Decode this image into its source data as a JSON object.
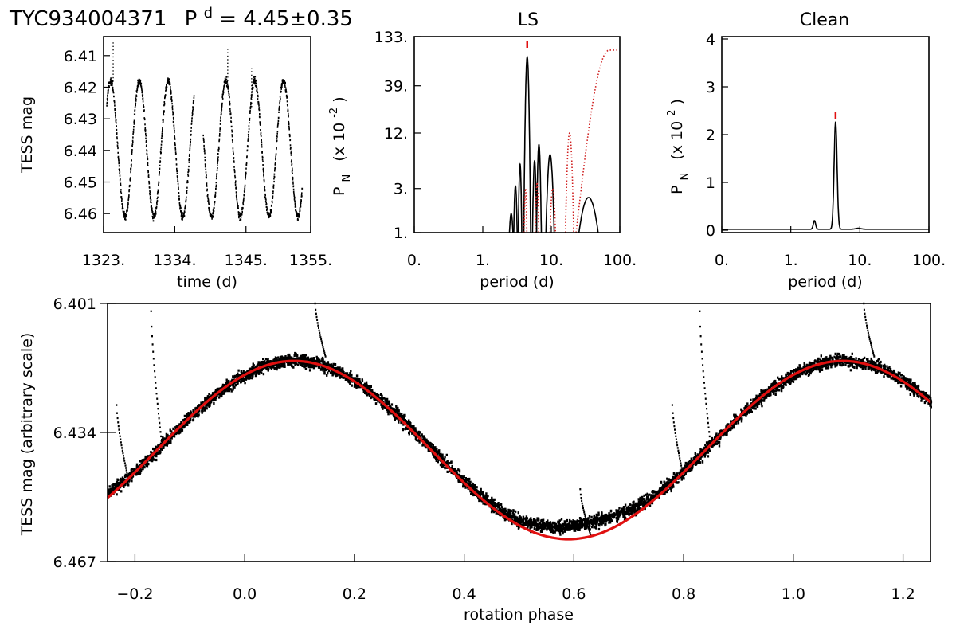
{
  "header": {
    "star": "TYC934004371",
    "p_label": "P",
    "p_sup": "d",
    "p_value": "= 4.45±0.35"
  },
  "chart_data": [
    {
      "id": "lightcurve",
      "type": "scatter",
      "title": "",
      "xlabel": "time (d)",
      "ylabel": "TESS mag",
      "xlim": [
        1323,
        1355
      ],
      "ylim": [
        6.466,
        6.404
      ],
      "y_inverted": true,
      "x_tick_labels": [
        "1323.",
        "1334.",
        "1345.",
        "1355."
      ],
      "x_ticks": [
        1323,
        1334,
        1345,
        1355
      ],
      "y_tick_labels": [
        "6.41",
        "6.42",
        "6.43",
        "6.44",
        "6.45",
        "6.46"
      ],
      "y_ticks": [
        6.41,
        6.42,
        6.43,
        6.44,
        6.45,
        6.46
      ],
      "model": {
        "mean": 6.4395,
        "amplitude": 0.0215,
        "period": 4.45,
        "t_peak": 1324.0
      },
      "gap": [
        1336.9,
        1338.3
      ],
      "flares": [
        {
          "x": 1324.4,
          "y": 6.406
        },
        {
          "x": 1342.1,
          "y": 6.408
        },
        {
          "x": 1345.8,
          "y": 6.414
        }
      ]
    },
    {
      "id": "ls",
      "type": "line",
      "title": "LS",
      "xlabel": "period (d)",
      "ylabel": "P",
      "ylabel_sub": "N",
      "ylabel_units": "(x 10",
      "ylabel_exp": "-2",
      "ylabel_close": ")",
      "x_scale": "log",
      "xlim": [
        0.1,
        100
      ],
      "x_ticks": [
        0.1,
        1,
        10,
        100
      ],
      "x_tick_labels": [
        "0.",
        "1.",
        "10.",
        "100."
      ],
      "y_scale": "log",
      "ylim": [
        1,
        133
      ],
      "y_ticks": [
        1,
        3,
        12,
        39,
        133
      ],
      "y_tick_labels": [
        "1.",
        "3.",
        "12.",
        "39.",
        "133."
      ],
      "peak_marker": {
        "x": 4.45,
        "y": 133
      },
      "series": [
        {
          "name": "periodogram",
          "style": "solid",
          "color": "#000000",
          "peaks": [
            {
              "x": 2.6,
              "y": 1.6,
              "w": 0.025
            },
            {
              "x": 3.0,
              "y": 3.2,
              "w": 0.025
            },
            {
              "x": 3.5,
              "y": 5.5,
              "w": 0.025
            },
            {
              "x": 4.45,
              "y": 80,
              "w": 0.05
            },
            {
              "x": 5.7,
              "y": 6.0,
              "w": 0.03
            },
            {
              "x": 6.6,
              "y": 9.0,
              "w": 0.035
            },
            {
              "x": 9.6,
              "y": 7.0,
              "w": 0.06
            },
            {
              "x": 35,
              "y": 2.4,
              "w": 0.14
            }
          ]
        },
        {
          "name": "window function",
          "style": "dotted",
          "color": "#d02020",
          "peaks": [
            {
              "x": 4.2,
              "y": 3.0,
              "w": 0.02
            },
            {
              "x": 6.2,
              "y": 3.5,
              "w": 0.025
            },
            {
              "x": 10.5,
              "y": 3.0,
              "w": 0.04
            },
            {
              "x": 18.5,
              "y": 12.0,
              "w": 0.06
            }
          ],
          "rise": {
            "x0": 23,
            "x1": 70,
            "y_end": 95
          }
        }
      ]
    },
    {
      "id": "clean",
      "type": "line",
      "title": "Clean",
      "xlabel": "period (d)",
      "ylabel": "P",
      "ylabel_sub": "N",
      "ylabel_units": "(x 10",
      "ylabel_exp": "2",
      "ylabel_close": ")",
      "x_scale": "log",
      "xlim": [
        0.1,
        100
      ],
      "x_ticks": [
        0.1,
        1,
        10,
        100
      ],
      "x_tick_labels": [
        "0.",
        "1.",
        "10.",
        "100."
      ],
      "ylim": [
        -0.05,
        4.05
      ],
      "y_ticks": [
        0,
        1,
        2,
        3,
        4
      ],
      "y_tick_labels": [
        "0",
        "1",
        "2",
        "3",
        "4"
      ],
      "peak_marker": {
        "x": 4.45,
        "y": 2.4
      },
      "series": [
        {
          "name": "clean spectrum",
          "color": "#000000",
          "peaks": [
            {
              "x": 4.45,
              "y": 2.25,
              "w": 0.045
            },
            {
              "x": 2.2,
              "y": 0.18,
              "w": 0.035
            },
            {
              "x": 9.5,
              "y": 0.02,
              "w": 0.08
            }
          ],
          "baseline": 0.02
        }
      ]
    },
    {
      "id": "phased",
      "type": "scatter",
      "title": "",
      "xlabel": "rotation phase",
      "ylabel": "TESS mag (arbitrary scale)",
      "xlim": [
        -0.25,
        1.25
      ],
      "x_ticks": [
        -0.2,
        0.0,
        0.2,
        0.4,
        0.6,
        0.8,
        1.0,
        1.2
      ],
      "x_tick_labels": [
        "−0.2",
        "0.0",
        "0.2",
        "0.4",
        "0.6",
        "0.8",
        "1.0",
        "1.2"
      ],
      "ylim": [
        6.467,
        6.401
      ],
      "y_inverted": true,
      "y_ticks": [
        6.401,
        6.434,
        6.467
      ],
      "y_tick_labels": [
        "6.401",
        "6.434",
        "6.467"
      ],
      "series": [
        {
          "name": "observations",
          "color": "#000000"
        },
        {
          "name": "sinusoidal fit",
          "color": "#e01010",
          "mean": 6.4385,
          "amplitude": 0.0228,
          "phase_max": 0.09
        }
      ],
      "flares": [
        {
          "x": -0.235,
          "y": 6.427,
          "base": 6.4448
        },
        {
          "x": -0.172,
          "y": 6.403,
          "base": 6.4372
        },
        {
          "x": 0.127,
          "y": 6.401,
          "base": 6.415
        },
        {
          "x": 0.61,
          "y": 6.4485,
          "base": 6.4605
        },
        {
          "x": 0.778,
          "y": 6.427,
          "base": 6.4448
        },
        {
          "x": 0.828,
          "y": 6.403,
          "base": 6.4372
        },
        {
          "x": 1.127,
          "y": 6.401,
          "base": 6.415
        }
      ]
    }
  ]
}
